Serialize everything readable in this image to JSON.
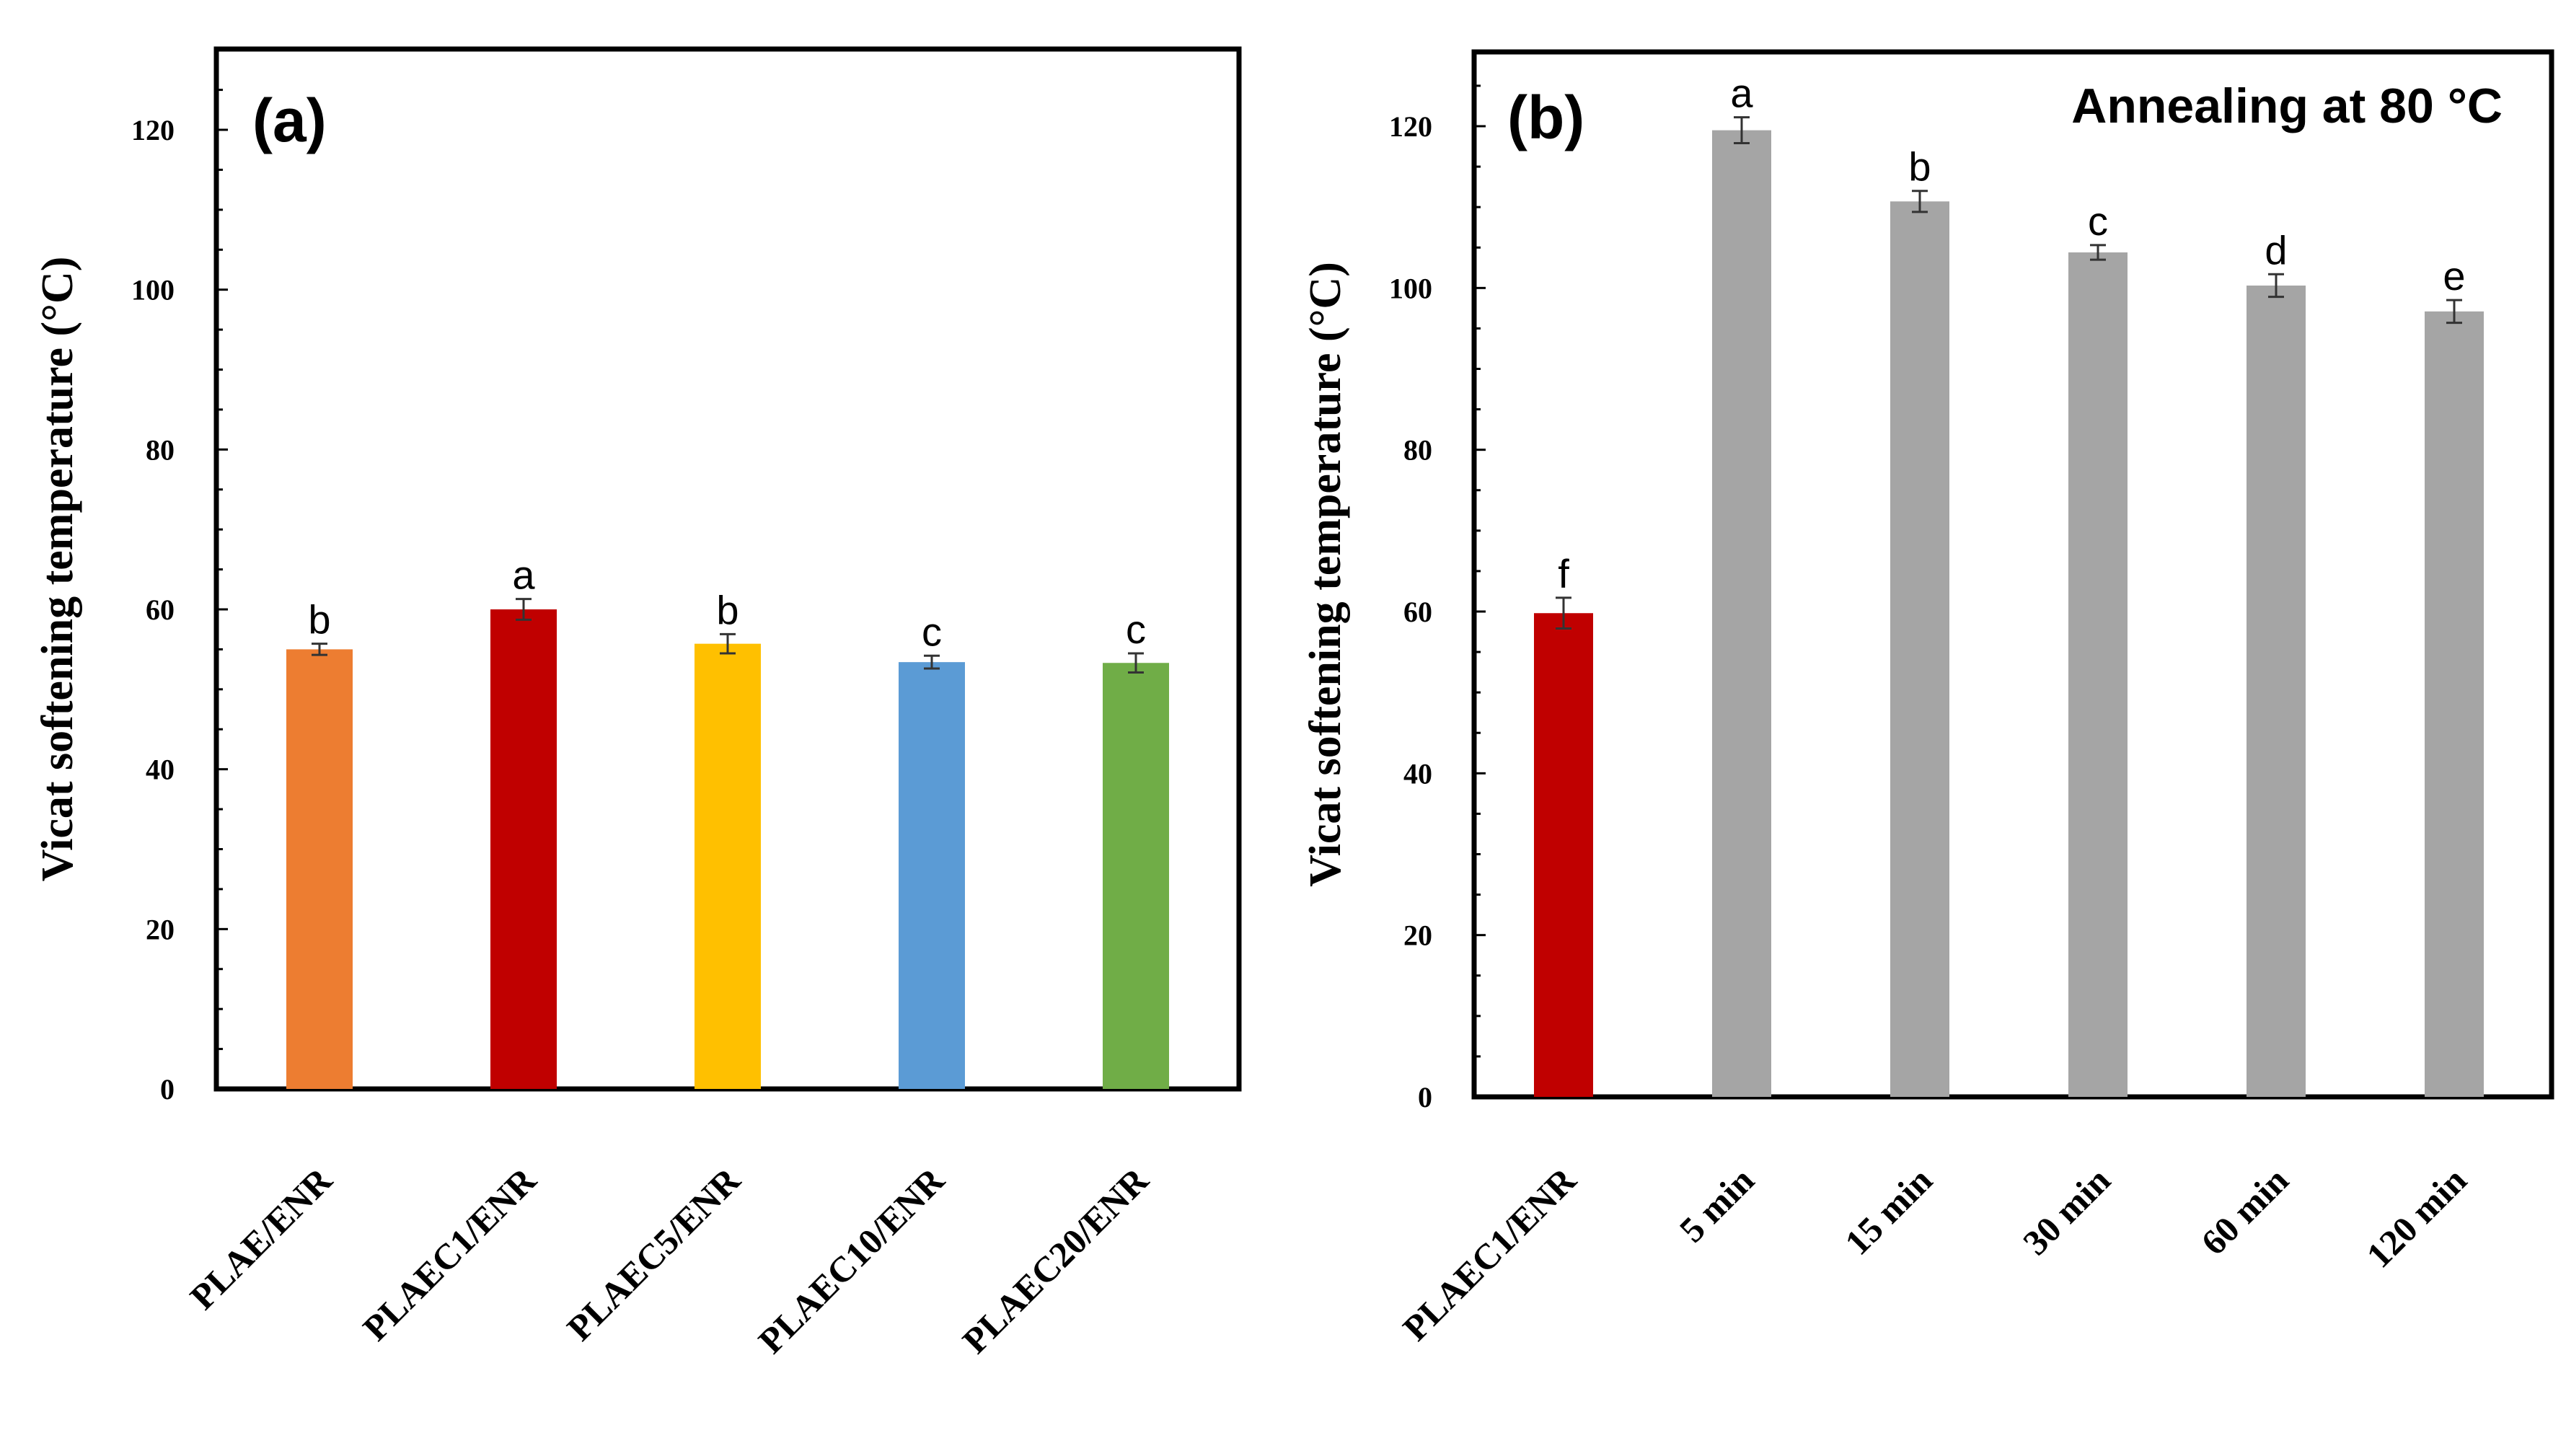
{
  "chart_data": [
    {
      "type": "bar",
      "panel_label": "(a)",
      "title": "",
      "annotation": "",
      "xlabel": "",
      "ylabel": "Vicat softening temperature (°C)",
      "ylim": [
        0,
        130
      ],
      "yticks": [
        0,
        20,
        40,
        60,
        80,
        100,
        120
      ],
      "categories": [
        "PLAE/ENR",
        "PLAEC1/ENR",
        "PLAEC5/ENR",
        "PLAEC10/ENR",
        "PLAEC20/ENR"
      ],
      "values": [
        55,
        60,
        55.7,
        53.4,
        53.3
      ],
      "errors": [
        0.7,
        1.3,
        1.2,
        0.8,
        1.2
      ],
      "significance": [
        "b",
        "a",
        "b",
        "c",
        "c"
      ],
      "colors": [
        "#ED7D31",
        "#C00000",
        "#FFC000",
        "#5B9BD5",
        "#70AD47"
      ]
    },
    {
      "type": "bar",
      "panel_label": "(b)",
      "title": "",
      "annotation": "Annealing at 80 °C",
      "xlabel": "",
      "ylabel": "Vicat softening temperature (°C)",
      "ylim": [
        0,
        130
      ],
      "yticks": [
        0,
        20,
        40,
        60,
        80,
        100,
        120
      ],
      "categories": [
        "PLAEC1/ENR",
        "5 min",
        "15 min",
        "30 min",
        "60 min",
        "120 min"
      ],
      "values": [
        59.8,
        119.5,
        110.7,
        104.4,
        100.3,
        97.1
      ],
      "errors": [
        1.9,
        1.6,
        1.3,
        0.9,
        1.4,
        1.4
      ],
      "significance": [
        "f",
        "a",
        "b",
        "c",
        "d",
        "e"
      ],
      "colors": [
        "#C00000",
        "#A5A5A5",
        "#A5A5A5",
        "#A5A5A5",
        "#A5A5A5",
        "#A5A5A5"
      ]
    }
  ]
}
